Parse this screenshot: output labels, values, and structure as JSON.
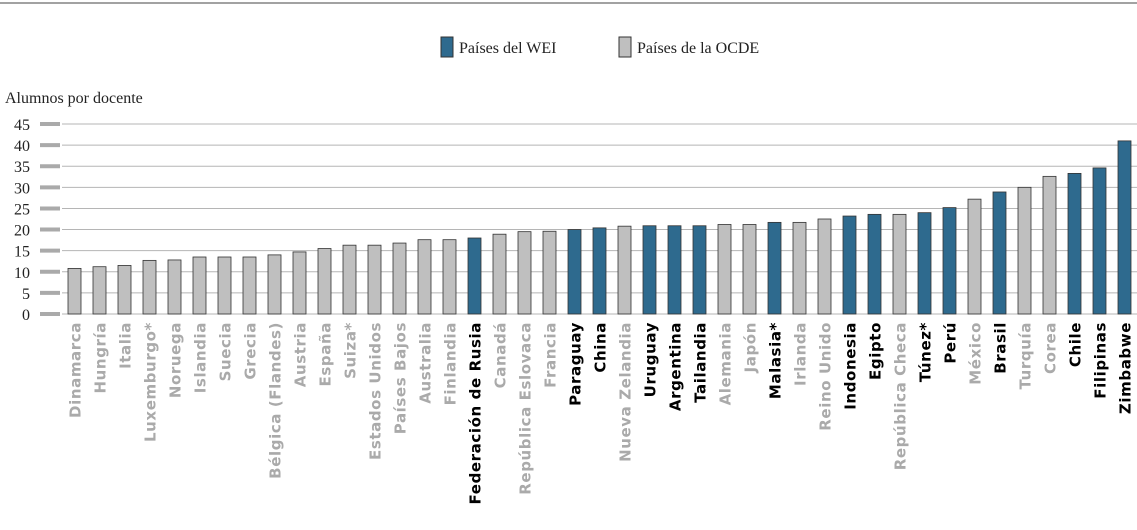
{
  "chart_data": {
    "type": "bar",
    "ylabel": "Alumnos por docente",
    "categories": [
      "Dinamarca",
      "Hungría",
      "Italia",
      "Luxemburgo*",
      "Noruega",
      "Islandia",
      "Suecia",
      "Grecia",
      "Bélgica (Flandes)",
      "Austria",
      "España",
      "Suiza*",
      "Estados Unidos",
      "Países Bajos",
      "Australia",
      "Finlandia",
      "Federación de Rusia",
      "Canadá",
      "República Eslovaca",
      "Francia",
      "Paraguay",
      "China",
      "Nueva Zelandia",
      "Uruguay",
      "Argentina",
      "Tailandia",
      "Alemania",
      "Japón",
      "Malasia*",
      "Irlanda",
      "Reino Unido",
      "Indonesia",
      "Egipto",
      "República Checa",
      "Túnez*",
      "Perú",
      "México",
      "Brasil",
      "Turquía",
      "Corea",
      "Chile",
      "Filipinas",
      "Zimbabwe"
    ],
    "series": [
      {
        "name": "Países del WEI",
        "color": "#2e6a8e",
        "values": [
          null,
          null,
          null,
          null,
          null,
          null,
          null,
          null,
          null,
          null,
          null,
          null,
          null,
          null,
          null,
          null,
          18,
          null,
          null,
          null,
          20,
          20.4,
          null,
          20.9,
          20.9,
          20.9,
          null,
          null,
          21.7,
          null,
          null,
          23.2,
          23.6,
          null,
          24,
          25.2,
          null,
          28.9,
          null,
          null,
          33.3,
          34.6,
          41
        ]
      },
      {
        "name": "Países de la OCDE",
        "color": "#bfbfbf",
        "values": [
          10.8,
          11.2,
          11.5,
          12.7,
          12.8,
          13.5,
          13.5,
          13.5,
          14,
          14.7,
          15.5,
          16.3,
          16.3,
          16.8,
          17.6,
          17.6,
          null,
          18.9,
          19.5,
          19.6,
          null,
          null,
          20.8,
          null,
          null,
          null,
          21.2,
          21.2,
          null,
          21.7,
          22.5,
          null,
          null,
          23.6,
          null,
          null,
          27.2,
          null,
          30,
          32.6,
          null,
          null,
          null
        ]
      }
    ],
    "ylim": [
      0,
      45
    ],
    "yticks": [
      0,
      5,
      10,
      15,
      20,
      25,
      30,
      35,
      40,
      45
    ],
    "grid": true
  }
}
